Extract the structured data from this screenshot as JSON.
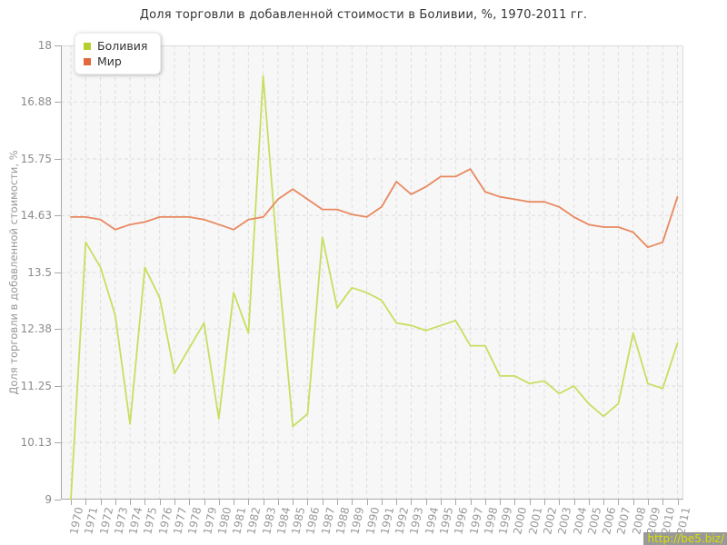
{
  "title": "Доля торговли в добавленной стоимости в Боливии, %, 1970-2011 гг.",
  "y_axis": {
    "label": "Доля торговли в добавленной стоимости, %",
    "tick_labels": [
      "18",
      "16.88",
      "15.75",
      "14.63",
      "13.5",
      "12.38",
      "11.25",
      "10.13",
      "9"
    ],
    "tick_values": [
      18,
      16.88,
      15.75,
      14.63,
      13.5,
      12.38,
      11.25,
      10.13,
      9
    ]
  },
  "legend": {
    "items": [
      {
        "label": "Боливия",
        "color": "#b4d02f"
      },
      {
        "label": "Мир",
        "color": "#e2673a"
      }
    ]
  },
  "watermark": {
    "text": "http://be5.biz/",
    "background": "#999999",
    "color": "#d9e000"
  },
  "colors": {
    "plot_background": "#f7f7f7",
    "grid": "#dedede",
    "axis": "#a8a8a8",
    "bolivia_line": "#c6df60",
    "world_line": "#e9885f"
  },
  "chart_data": {
    "type": "line",
    "title": "Доля торговли в добавленной стоимости в Боливии, %, 1970-2011 гг.",
    "xlabel": "",
    "ylabel": "Доля торговли в добавленной стоимости, %",
    "ylim": [
      9,
      18
    ],
    "yticks": [
      9,
      10.13,
      11.25,
      12.38,
      13.5,
      14.63,
      15.75,
      16.88,
      18
    ],
    "grid": true,
    "legend_position": "top-left",
    "x": [
      1970,
      1971,
      1972,
      1973,
      1974,
      1975,
      1976,
      1977,
      1978,
      1979,
      1980,
      1981,
      1982,
      1983,
      1984,
      1985,
      1986,
      1987,
      1988,
      1989,
      1990,
      1991,
      1992,
      1993,
      1994,
      1995,
      1996,
      1997,
      1998,
      1999,
      2000,
      2001,
      2002,
      2003,
      2004,
      2005,
      2006,
      2007,
      2008,
      2009,
      2010,
      2011
    ],
    "series": [
      {
        "name": "Боливия",
        "color": "#c6df60",
        "legend_color": "#b4d02f",
        "values": [
          9.0,
          14.1,
          13.6,
          12.65,
          10.5,
          13.6,
          13.0,
          11.5,
          12.0,
          12.5,
          10.6,
          13.1,
          12.3,
          17.4,
          13.7,
          10.45,
          10.7,
          14.2,
          12.8,
          13.2,
          13.1,
          12.95,
          12.5,
          12.45,
          12.35,
          12.45,
          12.55,
          12.05,
          12.05,
          11.45,
          11.45,
          11.3,
          11.35,
          11.1,
          11.25,
          10.9,
          10.65,
          10.9,
          12.3,
          11.3,
          11.2,
          12.1
        ]
      },
      {
        "name": "Мир",
        "color": "#e9885f",
        "legend_color": "#e2673a",
        "values": [
          14.6,
          14.6,
          14.55,
          14.35,
          14.45,
          14.5,
          14.6,
          14.6,
          14.6,
          14.55,
          14.45,
          14.35,
          14.55,
          14.6,
          14.95,
          15.15,
          14.95,
          14.75,
          14.75,
          14.65,
          14.6,
          14.8,
          15.3,
          15.05,
          15.2,
          15.4,
          15.4,
          15.55,
          15.1,
          15.0,
          14.95,
          14.9,
          14.9,
          14.8,
          14.6,
          14.45,
          14.4,
          14.4,
          14.3,
          14.0,
          14.1,
          15.0
        ]
      }
    ]
  }
}
